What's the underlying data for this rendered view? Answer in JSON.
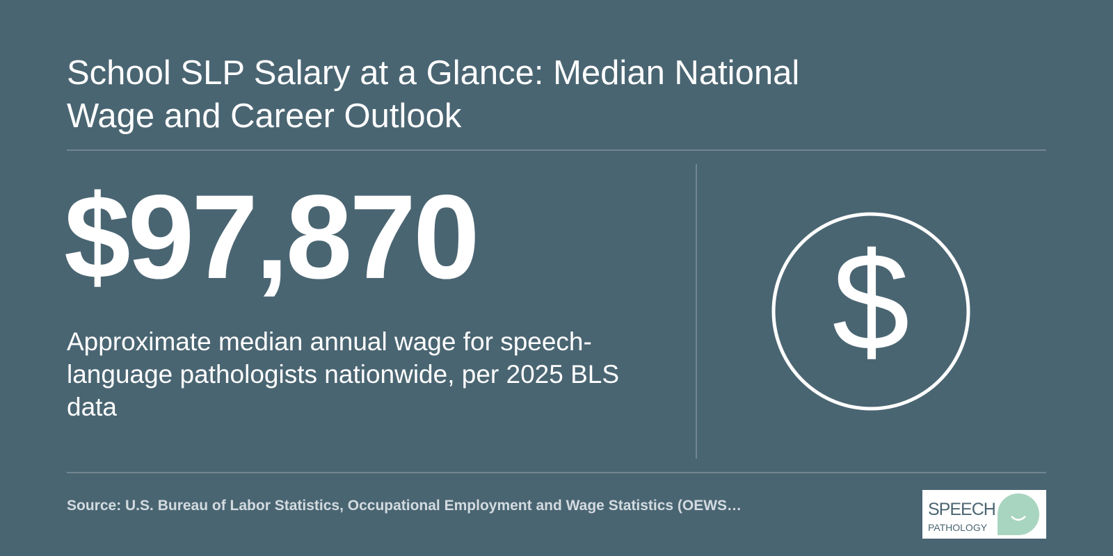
{
  "header": {
    "title": "School SLP Salary at a Glance: Median National Wage and Career Outlook"
  },
  "stat": {
    "value": "$97,870",
    "description": "Approximate median annual wage for speech-language pathologists nationwide, per 2025 BLS data",
    "icon_symbol": "$"
  },
  "footer": {
    "source": "Source: U.S. Bureau of Labor Statistics, Occupational Employment and Wage Statistics (OEWS…",
    "logo_line1": "SPEECH",
    "logo_line2": "PATHOLOGY"
  }
}
